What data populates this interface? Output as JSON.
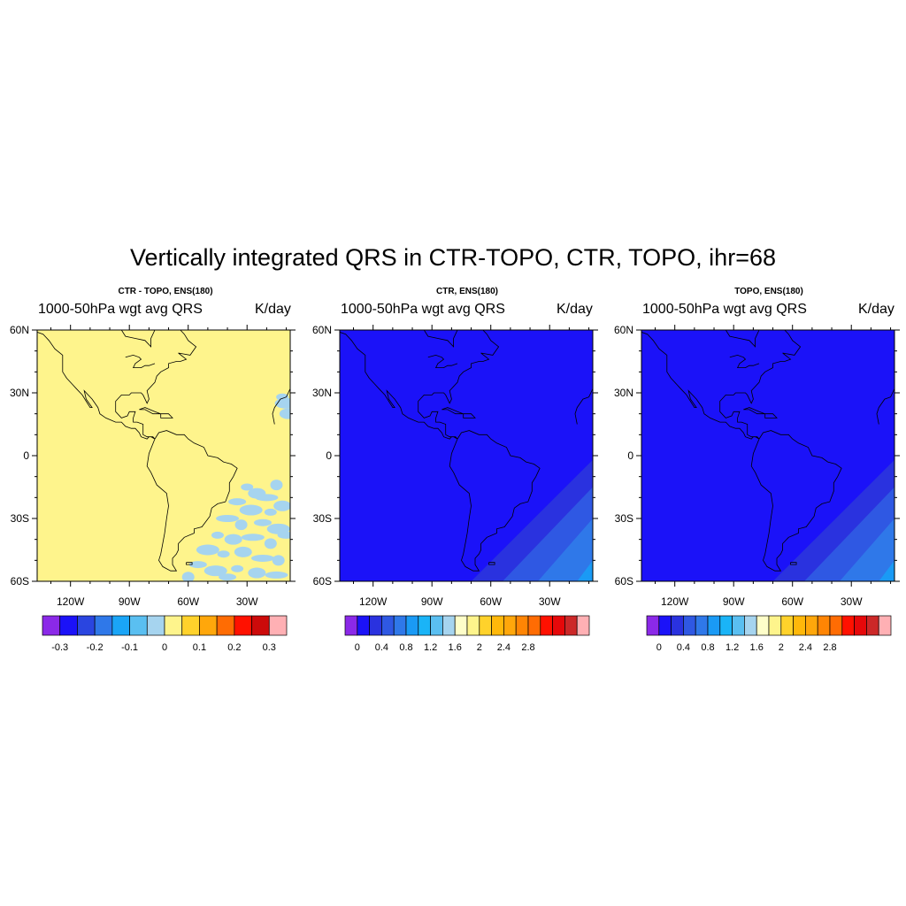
{
  "title": "Vertically integrated QRS in CTR-TOPO, CTR, TOPO, ihr=68",
  "lat_ticks": [
    "60N",
    "30N",
    "0",
    "30S",
    "60S"
  ],
  "lon_ticks": [
    "120W",
    "90W",
    "60W",
    "30W"
  ],
  "panels": [
    {
      "name": "diff",
      "title": "CTR - TOPO, ENS(180)",
      "left_string": "1000-50hPa wgt avg QRS",
      "right_string": "K/day",
      "field": "near-zero difference everywhere, small patches in South Atlantic",
      "fill_color": "#FEF48C",
      "colorbar": {
        "colors": [
          "#8B29E8",
          "#1B12F8",
          "#2A45E0",
          "#2F78E9",
          "#1AA5F7",
          "#5ABFF1",
          "#A6D4EF",
          "#FEF48C",
          "#FFD22B",
          "#FFA70B",
          "#FF6C03",
          "#FF1100",
          "#CC0A0A",
          "#FFB0B4"
        ],
        "labels": [
          "-0.3",
          "-0.2",
          "-0.1",
          "0",
          "0.1",
          "0.2",
          "0.3"
        ]
      }
    },
    {
      "name": "ctr",
      "title": "CTR, ENS(180)",
      "left_string": "1000-50hPa wgt avg QRS",
      "right_string": "K/day",
      "field": "values below 0.2 over most of the domain, rising toward the southeast",
      "fill_color": "#1B12F8",
      "colorbar": {
        "colors": [
          "#8B29E8",
          "#1B12F8",
          "#2A32DF",
          "#2F58E3",
          "#2F78E9",
          "#1A9AF5",
          "#1AB4F7",
          "#5ABFF1",
          "#A6D4EF",
          "#FEFEC9",
          "#FEF48C",
          "#FFD22B",
          "#FFB80A",
          "#FFA70B",
          "#FF8504",
          "#FF6C03",
          "#FF1100",
          "#E6080A",
          "#CC2828",
          "#FFB0B4"
        ],
        "labels": [
          "0",
          "0.4",
          "0.8",
          "1.2",
          "1.6",
          "2",
          "2.4",
          "2.8"
        ]
      }
    },
    {
      "name": "topo",
      "title": "TOPO, ENS(180)",
      "left_string": "1000-50hPa wgt avg QRS",
      "right_string": "K/day",
      "field": "values below 0.2 over most of the domain, rising toward the southeast",
      "fill_color": "#1B12F8",
      "colorbar": {
        "colors": [
          "#8B29E8",
          "#1B12F8",
          "#2A32DF",
          "#2F58E3",
          "#2F78E9",
          "#1A9AF5",
          "#1AB4F7",
          "#5ABFF1",
          "#A6D4EF",
          "#FEFEC9",
          "#FEF48C",
          "#FFD22B",
          "#FFB80A",
          "#FFA70B",
          "#FF8504",
          "#FF6C03",
          "#FF1100",
          "#E6080A",
          "#CC2828",
          "#FFB0B4"
        ],
        "labels": [
          "0",
          "0.4",
          "0.8",
          "1.2",
          "1.6",
          "2",
          "2.4",
          "2.8"
        ]
      }
    }
  ]
}
